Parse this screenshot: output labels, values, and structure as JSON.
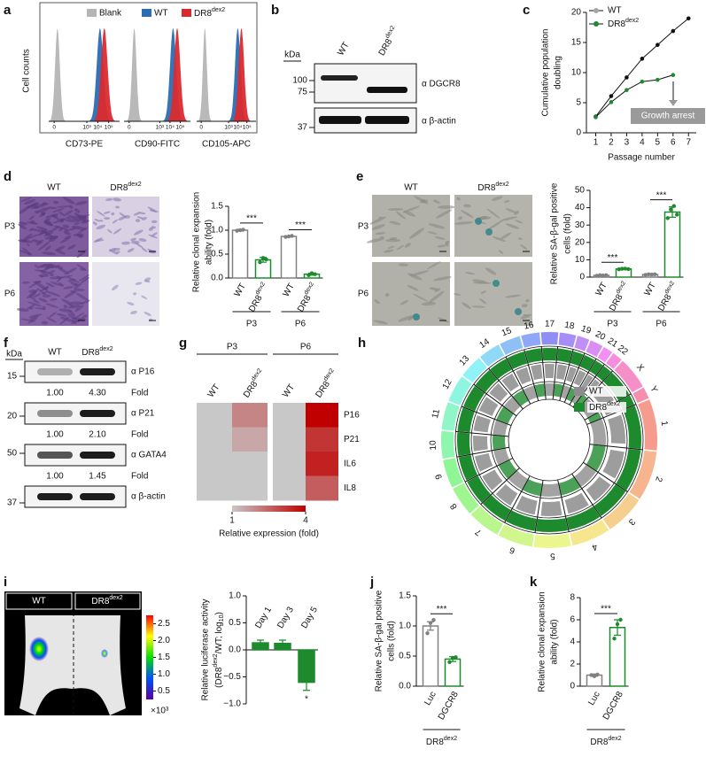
{
  "a": {
    "label": "a",
    "ylabel": "Cell counts",
    "series": [
      {
        "name": "Blank",
        "color": "#b5b5b5",
        "centers": [
          0.3,
          0.5,
          0.4
        ]
      },
      {
        "name": "WT",
        "color": "#2b6cb3",
        "centers": [
          4.2,
          4.3,
          4.0
        ]
      },
      {
        "name": [
          "DR8",
          {
            "sup": "dex2"
          }
        ],
        "color": "#db2a2e",
        "centers": [
          4.6,
          4.7,
          4.4
        ]
      }
    ],
    "xlabels": [
      "CD73-PE",
      "CD90-FITC",
      "CD105-APC"
    ],
    "xlim": [
      -0.5,
      6
    ],
    "xticks": [
      0,
      {
        "value": 3,
        "label": "10³"
      },
      {
        "value": 4,
        "label": "10⁴"
      },
      {
        "value": 5,
        "label": "10⁵"
      }
    ]
  },
  "b": {
    "label": "b",
    "unit": "kDa",
    "lanes": [
      "WT",
      [
        "DR8",
        {
          "sup": "dex2"
        }
      ]
    ],
    "markers": [
      100,
      75,
      37
    ],
    "antibodies": [
      "α DGCR8",
      "α β-actin"
    ]
  },
  "c": {
    "type": "line",
    "label": "c",
    "ylabel": [
      "Cumulative population",
      "doubling"
    ],
    "xlabel": "Passage number",
    "x": [
      1,
      2,
      3,
      4,
      5,
      6,
      7
    ],
    "xlim": [
      0.4,
      7.5
    ],
    "xticks": [
      1,
      2,
      3,
      4,
      5,
      6,
      7
    ],
    "ylim": [
      0,
      20
    ],
    "yticks": [
      0,
      5,
      10,
      15,
      20
    ],
    "series": [
      {
        "name": "WT",
        "color": "#a6a6a6",
        "values": [
          2.7,
          6.1,
          9.2,
          12.3,
          14.6,
          16.9,
          19.0
        ]
      },
      {
        "name": [
          "DR8",
          {
            "sup": "dex2"
          }
        ],
        "color": "#1e8a2e",
        "values": [
          2.6,
          5.1,
          7.1,
          8.5,
          8.8,
          9.6,
          null
        ]
      }
    ],
    "annotation": "Growth arrest"
  },
  "d": {
    "label": "d",
    "columns": [
      "WT",
      [
        "DR8",
        {
          "sup": "dex2"
        }
      ]
    ],
    "rows": [
      "P3",
      "P6"
    ],
    "chart": {
      "type": "bar",
      "ylabel": [
        "Relative clonal expansion",
        "ability (fold)"
      ],
      "categories": [
        "WT",
        [
          "DR8",
          {
            "sup": "dex2"
          }
        ],
        "WT",
        [
          "DR8",
          {
            "sup": "dex2"
          }
        ]
      ],
      "groups": [
        "P3",
        "P6"
      ],
      "significance": [
        "***",
        "***"
      ],
      "values": [
        1.0,
        0.38,
        0.87,
        0.08
      ],
      "errors": [
        0.02,
        0.05,
        0.01,
        0.02
      ],
      "points": [
        [
          0.99,
          1.0,
          1.01
        ],
        [
          0.33,
          0.42,
          0.39
        ],
        [
          0.86,
          0.87,
          0.88
        ],
        [
          0.06,
          0.1,
          0.08
        ]
      ],
      "colors": [
        "#808080",
        "#1e8a2e",
        "#808080",
        "#1e8a2e"
      ],
      "filled": false,
      "ylim": [
        0,
        1.5
      ],
      "yticks": [
        {
          "value": 0,
          "label": "0.0"
        },
        0.5,
        {
          "value": 1,
          "label": "1.0"
        },
        1.5
      ]
    }
  },
  "e": {
    "label": "e",
    "columns": [
      "WT",
      [
        "DR8",
        {
          "sup": "dex2"
        }
      ]
    ],
    "rows": [
      "P3",
      "P6"
    ],
    "chart": {
      "type": "bar",
      "ylabel": [
        "Relative SA-β-gal positive",
        "cells (fold)"
      ],
      "categories": [
        "WT",
        [
          "DR8",
          {
            "sup": "dex2"
          }
        ],
        "WT",
        [
          "DR8",
          {
            "sup": "dex2"
          }
        ]
      ],
      "groups": [
        "P3",
        "P6"
      ],
      "significance": [
        "***",
        "***"
      ],
      "values": [
        1.0,
        4.7,
        1.5,
        37.5
      ],
      "errors": [
        0.2,
        0.3,
        0.3,
        3
      ],
      "points": [
        [
          0.8,
          1.1,
          1.0,
          1.1
        ],
        [
          4.5,
          4.8,
          4.9,
          4.6
        ],
        [
          1.3,
          1.6,
          1.5,
          1.6
        ],
        [
          34,
          39,
          41,
          36
        ]
      ],
      "colors": [
        "#808080",
        "#1e8a2e",
        "#808080",
        "#1e8a2e"
      ],
      "filled": false,
      "ylim": [
        0,
        50
      ],
      "yticks": [
        0,
        10,
        20,
        30,
        40,
        50
      ]
    }
  },
  "f": {
    "label": "f",
    "unit": "kDa",
    "lanes": [
      "WT",
      [
        "DR8",
        {
          "sup": "dex2"
        }
      ]
    ],
    "fold_label": "Fold",
    "blots": [
      {
        "antibody": "α P16",
        "marker": 15,
        "fold": [
          "1.00",
          "4.30"
        ]
      },
      {
        "antibody": "α P21",
        "marker": 20,
        "fold": [
          "1.00",
          "2.10"
        ]
      },
      {
        "antibody": "α GATA4",
        "marker": 50,
        "fold": [
          "1.00",
          "1.45"
        ]
      },
      {
        "antibody": "α β-actin",
        "marker": 37
      }
    ]
  },
  "g": {
    "type": "heatmap",
    "label": "g",
    "groups": [
      "P3",
      "P6"
    ],
    "columns": [
      "WT",
      [
        "DR8",
        {
          "sup": "dex2"
        }
      ],
      "WT",
      [
        "DR8",
        {
          "sup": "dex2"
        }
      ]
    ],
    "rows": [
      "P16",
      "P21",
      "IL6",
      "IL8"
    ],
    "values": [
      [
        1,
        2.0,
        1,
        4.0
      ],
      [
        1,
        1.5,
        1,
        3.2
      ],
      [
        1,
        1,
        1,
        3.5
      ],
      [
        1,
        1,
        1,
        2.6
      ]
    ],
    "clim": [
      1,
      4
    ],
    "cticks": [
      1,
      4
    ],
    "colors": [
      "#c8c8c8",
      "#c00000"
    ],
    "clabel": "Relative expression (fold)"
  },
  "h": {
    "label": "h",
    "chromosomes": [
      "1",
      "2",
      "3",
      "4",
      "5",
      "6",
      "7",
      "8",
      "9",
      "10",
      "11",
      "12",
      "13",
      "14",
      "15",
      "16",
      "17",
      "18",
      "19",
      "20",
      "21",
      "22",
      "X",
      "Y"
    ],
    "legend": [
      {
        "name": "WT",
        "color": "#8c8c8c"
      },
      {
        "name": [
          "DR8",
          {
            "sup": "dex2"
          }
        ],
        "color": "#1e8a2e"
      }
    ]
  },
  "i": {
    "label": "i",
    "panels": [
      "WT",
      [
        "DR8",
        {
          "sup": "dex2"
        }
      ]
    ],
    "clim": [
      0.25,
      2.75
    ],
    "colorbar_ticks": [
      2.5,
      {
        "value": 2,
        "label": "2.0"
      },
      1.5,
      {
        "value": 1,
        "label": "1.0"
      },
      0.5
    ],
    "colorbar_unit": "×10³",
    "chart": {
      "type": "bar",
      "ylabel": [
        "Relative luciferase activity",
        [
          "(DR8",
          {
            "sup": "dex2"
          },
          "/WT; log",
          {
            "sub": "10"
          },
          ")"
        ]
      ],
      "categories": [
        "Day 1",
        "Day 3",
        "Day 5"
      ],
      "significance": [
        null,
        null,
        "*"
      ],
      "values": [
        0.13,
        0.12,
        -0.6
      ],
      "errors": [
        0.05,
        0.06,
        0.15
      ],
      "colors": [
        "#1e8a2e",
        "#1e8a2e",
        "#1e8a2e"
      ],
      "filled": true,
      "ylim": [
        -1,
        1
      ],
      "yticks": [
        {
          "value": -1,
          "label": "−1.0"
        },
        {
          "value": -0.5,
          "label": "−0.5"
        },
        {
          "value": 0,
          "label": "0.0"
        },
        0.5,
        {
          "value": 1,
          "label": "1.0"
        }
      ]
    }
  },
  "j": {
    "label": "j",
    "chart": {
      "type": "bar",
      "ylabel": [
        "Relative SA-β-gal positive",
        "cells (fold)"
      ],
      "categories": [
        "Luc",
        "DGCR8"
      ],
      "groups": [
        [
          "DR8",
          {
            "sup": "dex2"
          }
        ]
      ],
      "significance": [
        "***"
      ],
      "values": [
        1.0,
        0.45
      ],
      "errors": [
        0.07,
        0.04
      ],
      "points": [
        [
          0.88,
          1.05,
          1.1
        ],
        [
          0.4,
          0.47,
          0.48
        ]
      ],
      "colors": [
        "#808080",
        "#1e8a2e"
      ],
      "filled": false,
      "ylim": [
        0,
        1.5
      ],
      "yticks": [
        {
          "value": 0,
          "label": "0.0"
        },
        0.5,
        {
          "value": 1,
          "label": "1.0"
        },
        1.5
      ]
    }
  },
  "k": {
    "label": "k",
    "chart": {
      "type": "bar",
      "ylabel": [
        "Relative clonal expansion",
        "ability (fold)"
      ],
      "categories": [
        "Luc",
        "DGCR8"
      ],
      "groups": [
        [
          "DR8",
          {
            "sup": "dex2"
          }
        ]
      ],
      "significance": [
        "***"
      ],
      "values": [
        1.0,
        5.3
      ],
      "errors": [
        0.1,
        0.7
      ],
      "points": [
        [
          1.0,
          0.9,
          1.05
        ],
        [
          4.3,
          5.6,
          6.0
        ]
      ],
      "colors": [
        "#808080",
        "#1e8a2e"
      ],
      "filled": false,
      "ylim": [
        0,
        8
      ],
      "yticks": [
        0,
        2,
        4,
        6,
        8
      ]
    }
  }
}
